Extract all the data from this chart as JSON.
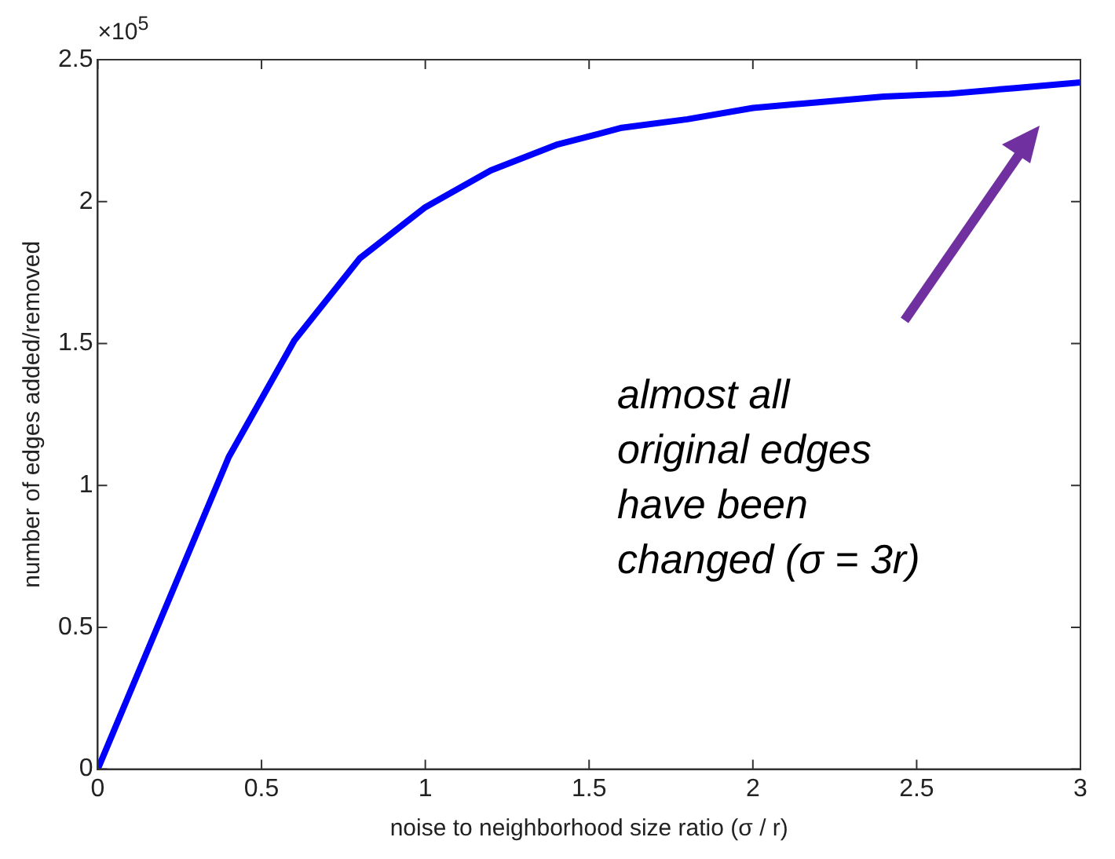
{
  "chart_data": {
    "type": "line",
    "xlabel": "noise to neighborhood size ratio (σ / r)",
    "ylabel": "number of edges added/removed",
    "x": [
      0,
      0.2,
      0.4,
      0.6,
      0.8,
      1.0,
      1.2,
      1.4,
      1.6,
      1.8,
      2.0,
      2.2,
      2.4,
      2.6,
      2.8,
      3.0
    ],
    "series": [
      {
        "color": "#0000ff",
        "values": [
          0,
          0.55,
          1.1,
          1.51,
          1.8,
          1.98,
          2.11,
          2.2,
          2.26,
          2.29,
          2.33,
          2.35,
          2.37,
          2.38,
          2.4,
          2.42
        ]
      }
    ],
    "xlim": [
      0,
      3
    ],
    "xticks": [
      0,
      0.5,
      1,
      1.5,
      2,
      2.5,
      3
    ],
    "ylim": [
      0,
      2.5
    ],
    "yticks": [
      0,
      0.5,
      1,
      1.5,
      2,
      2.5
    ],
    "marker": "none",
    "line_style": "solid",
    "annotations": [
      "×10$^{5}$",
      "almost all\noriginal edges\nhave been\nchanged (σ = 3r)"
    ]
  }
}
